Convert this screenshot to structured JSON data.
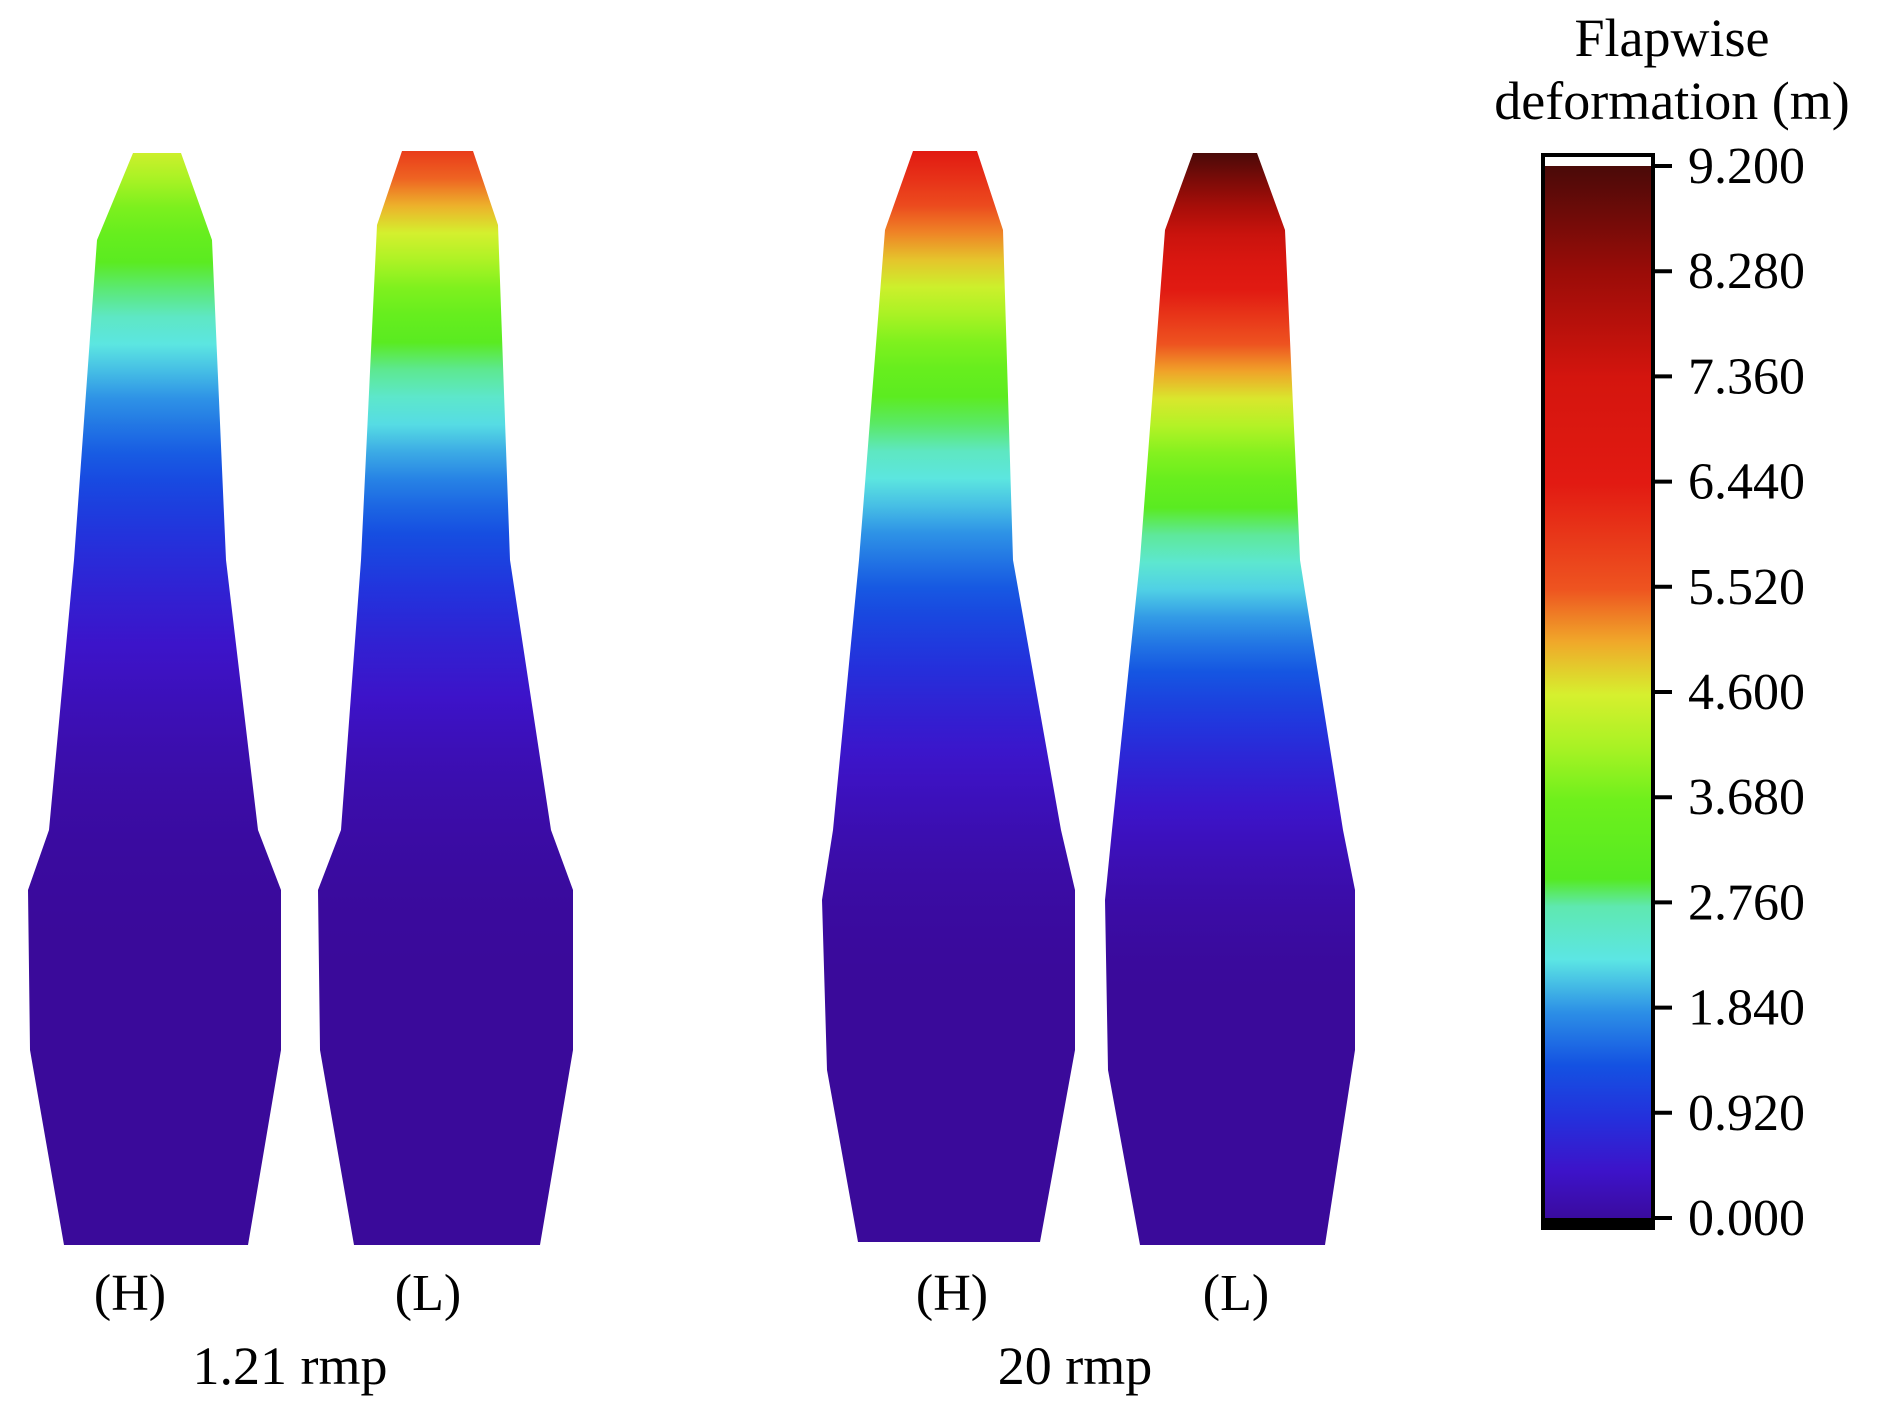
{
  "legend": {
    "title_line1": "Flapwise",
    "title_line2": "deformation (m)",
    "ticks": [
      "9.200",
      "8.280",
      "7.360",
      "6.440",
      "5.520",
      "4.600",
      "3.680",
      "2.760",
      "1.840",
      "0.920",
      "0.000"
    ]
  },
  "groups": [
    {
      "caption": "1.21 rmp",
      "blades": [
        {
          "label": "(H)"
        },
        {
          "label": "(L)"
        }
      ]
    },
    {
      "caption": "20 rmp",
      "blades": [
        {
          "label": "(H)"
        },
        {
          "label": "(L)"
        }
      ]
    }
  ],
  "colormap": [
    {
      "value": 0.0,
      "color": "#3a0a9a"
    },
    {
      "value": 0.46,
      "color": "#3d13c9"
    },
    {
      "value": 0.92,
      "color": "#2430dc"
    },
    {
      "value": 1.38,
      "color": "#1452e2"
    },
    {
      "value": 1.84,
      "color": "#2c8fe6"
    },
    {
      "value": 2.3,
      "color": "#5ce6e4"
    },
    {
      "value": 2.76,
      "color": "#5fe8b0"
    },
    {
      "value": 3.0,
      "color": "#55ea22"
    },
    {
      "value": 3.68,
      "color": "#6ef01c"
    },
    {
      "value": 4.14,
      "color": "#a8f224"
    },
    {
      "value": 4.6,
      "color": "#d6f02e"
    },
    {
      "value": 5.06,
      "color": "#f0a82a"
    },
    {
      "value": 5.52,
      "color": "#ee5420"
    },
    {
      "value": 6.44,
      "color": "#e21a12"
    },
    {
      "value": 7.36,
      "color": "#d4150e"
    },
    {
      "value": 8.28,
      "color": "#9a0c08"
    },
    {
      "value": 9.2,
      "color": "#4a0a08"
    }
  ]
}
